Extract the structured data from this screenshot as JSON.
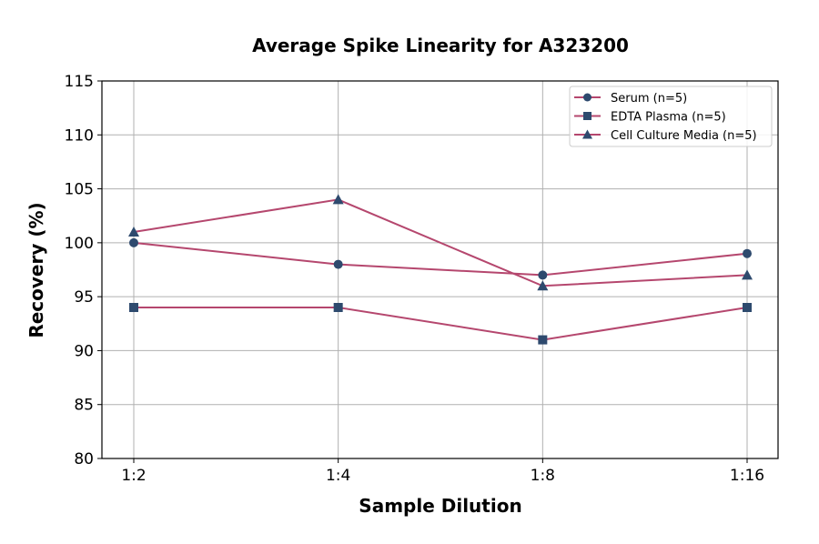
{
  "chart_data": {
    "type": "line",
    "title": "Average Spike Linearity for A323200",
    "xlabel": "Sample Dilution",
    "ylabel": "Recovery (%)",
    "categories": [
      "1:2",
      "1:4",
      "1:8",
      "1:16"
    ],
    "ylim": [
      80,
      115
    ],
    "yticks": [
      80,
      85,
      90,
      95,
      100,
      105,
      110,
      115
    ],
    "grid": true,
    "legend_position": "top-right",
    "line_color": "#b5476e",
    "marker_color": "#2e4a6e",
    "series": [
      {
        "name": "Serum (n=5)",
        "marker": "circle",
        "values": [
          100,
          98,
          97,
          99
        ]
      },
      {
        "name": "EDTA Plasma (n=5)",
        "marker": "square",
        "values": [
          94,
          94,
          91,
          94
        ]
      },
      {
        "name": "Cell Culture Media (n=5)",
        "marker": "triangle",
        "values": [
          101,
          104,
          96,
          97
        ]
      }
    ]
  }
}
